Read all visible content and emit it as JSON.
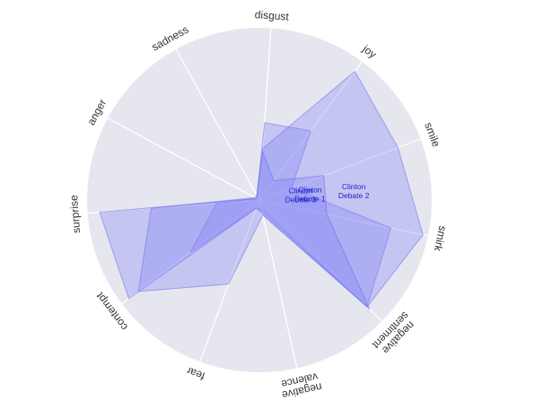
{
  "chart_data": {
    "type": "radar",
    "axes": [
      "smirk",
      "negative sentiment",
      "negative valence",
      "fear",
      "contempt",
      "surprise",
      "anger",
      "sadness",
      "disgust",
      "joy",
      "smile"
    ],
    "axis_labels": [
      [
        "smirk"
      ],
      [
        "negative",
        "sentiment"
      ],
      [
        "negative",
        "valence"
      ],
      [
        "fear"
      ],
      [
        "contempt"
      ],
      [
        "surprise"
      ],
      [
        "anger"
      ],
      [
        "sadness"
      ],
      [
        "disgust"
      ],
      [
        "joy"
      ],
      [
        "smile"
      ]
    ],
    "rlim": [
      0,
      1
    ],
    "grid": true,
    "series": [
      {
        "name": "Clinton Debate 1",
        "label_lines": [
          "Clinton",
          "Debate 1"
        ],
        "values": [
          0.78,
          0.88,
          0.08,
          0.05,
          0.5,
          0.25,
          0.02,
          0.03,
          0.45,
          0.5,
          0.2
        ]
      },
      {
        "name": "Clinton Debate 2",
        "label_lines": [
          "Clinton",
          "Debate 2"
        ],
        "values": [
          0.97,
          0.88,
          0.06,
          0.05,
          0.95,
          0.93,
          0.02,
          0.03,
          0.3,
          0.93,
          0.86
        ]
      },
      {
        "name": "Clinton Debate 3",
        "label_lines": [
          "Clinton",
          "Debate 3"
        ],
        "values": [
          0.4,
          0.9,
          0.09,
          0.52,
          0.88,
          0.63,
          0.03,
          0.03,
          0.28,
          0.14,
          0.4
        ]
      }
    ],
    "colors": {
      "background": "#e6e6ef",
      "grid": "#ffffff",
      "fill": "#7f7ff5",
      "stroke": "#6d6df0",
      "label": "#2323d0"
    }
  }
}
